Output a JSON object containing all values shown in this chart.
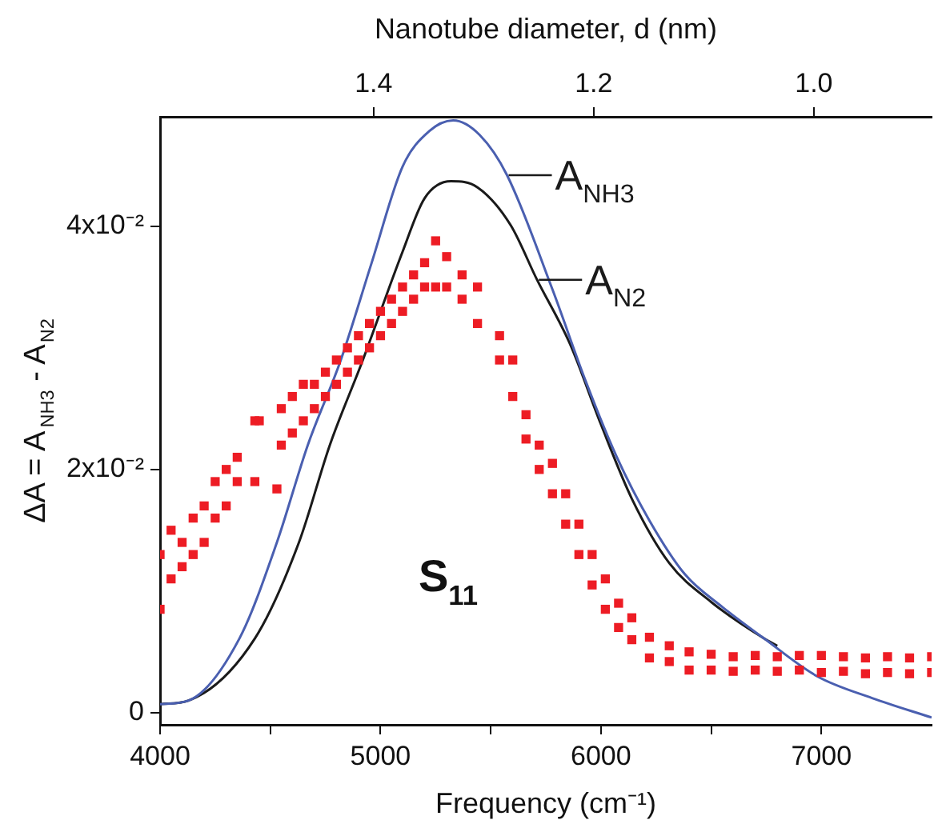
{
  "chart_data": {
    "type": "line",
    "xlabel": "Frequency (cm⁻¹)",
    "x2label": "Nanotube diameter, d (nm)",
    "ylabel": "ΔA = A$_{NH3}$ - A$_{N2}$",
    "xlim": [
      4000,
      7500
    ],
    "xticks": [
      4000,
      {
        "value": 4500,
        "label": null
      },
      5000,
      {
        "value": 5500,
        "label": null
      },
      6000,
      {
        "value": 6500,
        "label": null
      },
      7000
    ],
    "x2lim": [
      1.594,
      0.893
    ],
    "x2ticks": [
      1.4,
      1.2,
      {
        "value": 1.0,
        "label": "1.0"
      }
    ],
    "ylim": [
      -0.001,
      0.049
    ],
    "yticks": [
      0,
      {
        "value": 0.02,
        "label": "2x10⁻²"
      },
      {
        "value": 0.04,
        "label": "4x10⁻²"
      }
    ],
    "grid": false,
    "legend": false,
    "annotations": [
      "S$_{11}$",
      {
        "text": "A$_{NH3}$",
        "x": 5574,
        "y": 0.0442
      },
      {
        "text": "A$_{N2}$",
        "x": 5711,
        "y": 0.0356
      }
    ],
    "series": [
      {
        "type": "scatter",
        "marker": "square",
        "color": "#ed1c24",
        "x": [
          4000,
          4000,
          4050,
          4050,
          4100,
          4100,
          4150,
          4150,
          4200,
          4200,
          4250,
          4250,
          4300,
          4300,
          4350,
          4350,
          4430,
          4430,
          4450,
          4530,
          4550,
          4550,
          4600,
          4600,
          4650,
          4650,
          4700,
          4700,
          4750,
          4750,
          4800,
          4800,
          4850,
          4850,
          4900,
          4900,
          4950,
          4950,
          5000,
          5000,
          5050,
          5050,
          5100,
          5100,
          5150,
          5150,
          5200,
          5200,
          5250,
          5250,
          5300,
          5300,
          5370,
          5370,
          5440,
          5440,
          5540,
          5540,
          5600,
          5600,
          5660,
          5660,
          5720,
          5720,
          5780,
          5780,
          5840,
          5840,
          5900,
          5900,
          5960,
          5960,
          6020,
          6020,
          6080,
          6080,
          6140,
          6140,
          6220,
          6220,
          6310,
          6310,
          6400,
          6400,
          6500,
          6500,
          6600,
          6600,
          6700,
          6700,
          6800,
          6800,
          6900,
          6900,
          7000,
          7000,
          7100,
          7100,
          7200,
          7200,
          7300,
          7300,
          7400,
          7400,
          7500,
          7500
        ],
        "values": [
          0.013,
          0.0085,
          0.015,
          0.011,
          0.014,
          0.012,
          0.016,
          0.013,
          0.017,
          0.014,
          0.019,
          0.016,
          0.02,
          0.017,
          0.021,
          0.019,
          0.024,
          0.019,
          0.024,
          0.0184,
          0.025,
          0.022,
          0.026,
          0.023,
          0.027,
          0.024,
          0.027,
          0.025,
          0.028,
          0.026,
          0.029,
          0.027,
          0.03,
          0.028,
          0.031,
          0.029,
          0.032,
          0.03,
          0.033,
          0.031,
          0.034,
          0.032,
          0.035,
          0.033,
          0.036,
          0.034,
          0.037,
          0.035,
          0.0388,
          0.035,
          0.0375,
          0.035,
          0.036,
          0.034,
          0.035,
          0.032,
          0.031,
          0.029,
          0.029,
          0.026,
          0.0245,
          0.0225,
          0.022,
          0.02,
          0.0205,
          0.018,
          0.018,
          0.0155,
          0.0155,
          0.013,
          0.013,
          0.0105,
          0.011,
          0.0085,
          0.009,
          0.007,
          0.0078,
          0.006,
          0.0062,
          0.0045,
          0.0055,
          0.0042,
          0.005,
          0.0035,
          0.0048,
          0.0035,
          0.0046,
          0.0034,
          0.0047,
          0.0035,
          0.0046,
          0.0034,
          0.0047,
          0.0035,
          0.0047,
          0.0033,
          0.0046,
          0.0034,
          0.0045,
          0.0032,
          0.0046,
          0.0033,
          0.0045,
          0.0032,
          0.0046,
          0.0033
        ]
      },
      {
        "color": "#4a5fb0",
        "x": [
          4000,
          4130,
          4360,
          4530,
          4670,
          4820,
          4960,
          5100,
          5220,
          5330,
          5450,
          5574,
          5780,
          5930,
          6070,
          6220,
          6380,
          6550,
          6740,
          6980,
          7230,
          7500
        ],
        "values": [
          0.0007,
          0.001,
          0.0061,
          0.014,
          0.022,
          0.029,
          0.037,
          0.0449,
          0.0478,
          0.0487,
          0.0475,
          0.0442,
          0.0348,
          0.0273,
          0.0211,
          0.0158,
          0.0114,
          0.0087,
          0.0061,
          0.003,
          0.0012,
          -0.0004
        ]
      },
      {
        "color": "#1a1a1a",
        "x": [
          4000,
          4130,
          4430,
          4630,
          4770,
          4920,
          5100,
          5200,
          5320,
          5440,
          5590,
          5710,
          5860,
          6000,
          6140,
          6310,
          6500,
          6740,
          6800
        ],
        "values": [
          0.0007,
          0.001,
          0.0061,
          0.014,
          0.022,
          0.029,
          0.0379,
          0.0423,
          0.0437,
          0.0432,
          0.0401,
          0.0356,
          0.0303,
          0.0237,
          0.0176,
          0.0123,
          0.0091,
          0.0061,
          0.0055
        ]
      }
    ]
  }
}
